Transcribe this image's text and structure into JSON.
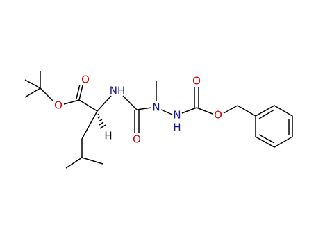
{
  "atoms": [
    {
      "label": "O"
    },
    {
      "label": "O"
    },
    {
      "label": "NH"
    },
    {
      "label": "H"
    },
    {
      "label": "O"
    },
    {
      "label": "N"
    },
    {
      "label": "N"
    },
    {
      "label": "H"
    },
    {
      "label": "O"
    },
    {
      "label": "O"
    }
  ]
}
